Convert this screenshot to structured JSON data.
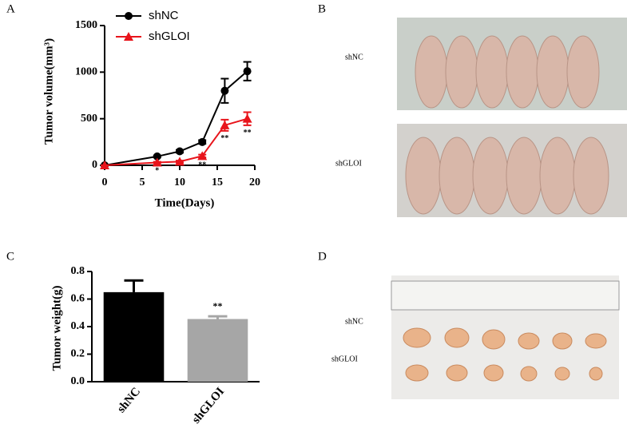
{
  "panel_labels": [
    "A",
    "B",
    "C",
    "D"
  ],
  "photo_b": {
    "labels": [
      "shNC",
      "shGLOI"
    ]
  },
  "photo_d": {
    "labels": [
      "shNC",
      "shGLOI"
    ]
  },
  "chart_data": [
    {
      "type": "line",
      "x_label": "Time(Days)",
      "y_label": "Tumor volume(mm³)",
      "x": [
        0,
        7,
        10,
        13,
        16,
        19
      ],
      "series": [
        {
          "name": "shNC",
          "color": "#000000",
          "marker": "circle",
          "values": [
            0,
            95,
            150,
            250,
            800,
            1010
          ],
          "errors": [
            0,
            10,
            15,
            20,
            130,
            100
          ]
        },
        {
          "name": "shGLOI",
          "color": "#e8141b",
          "marker": "triangle",
          "values": [
            0,
            30,
            40,
            100,
            430,
            500
          ],
          "errors": [
            0,
            8,
            10,
            15,
            60,
            70
          ],
          "significance": [
            null,
            "*",
            null,
            "**",
            "**",
            "**"
          ]
        }
      ],
      "xlim": [
        0,
        20
      ],
      "xticks": [
        0,
        5,
        10,
        15,
        20
      ],
      "ylim": [
        0,
        1500
      ],
      "yticks": [
        0,
        500,
        1000,
        1500
      ]
    },
    {
      "type": "bar",
      "y_label": "Tumor weight(g)",
      "categories": [
        "shNC",
        "shGLOI"
      ],
      "values": [
        0.65,
        0.455
      ],
      "errors": [
        0.085,
        0.02
      ],
      "colors": [
        "#000000",
        "#a6a6a6"
      ],
      "significance": [
        null,
        "**"
      ],
      "ylim": [
        0,
        0.8
      ],
      "yticks": [
        {
          "value": 0,
          "label": "0.0"
        },
        0.2,
        0.4,
        0.6,
        0.8
      ]
    }
  ]
}
